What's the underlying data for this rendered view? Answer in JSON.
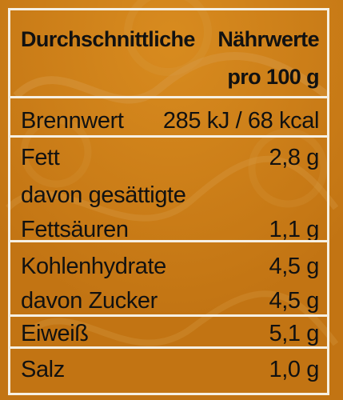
{
  "header": {
    "left": "Durchschnittliche",
    "right_line1": "Nährwerte",
    "right_line2": "pro 100 g"
  },
  "rows": [
    {
      "label": "Brennwert",
      "value": "285 kJ / 68 kcal"
    },
    {
      "label": "Fett",
      "value": "2,8 g"
    },
    {
      "label": "davon gesättigte",
      "value": ""
    },
    {
      "label": "Fettsäuren",
      "value": "1,1 g"
    },
    {
      "label": "Kohlenhydrate",
      "value": "4,5 g"
    },
    {
      "label": "davon Zucker",
      "value": "4,5 g"
    },
    {
      "label": "Eiweiß",
      "value": "5,1 g"
    },
    {
      "label": "Salz",
      "value": "1,0 g"
    }
  ],
  "colors": {
    "background": "#c77a16",
    "lines": "#f6f0e3",
    "text": "#111111"
  }
}
